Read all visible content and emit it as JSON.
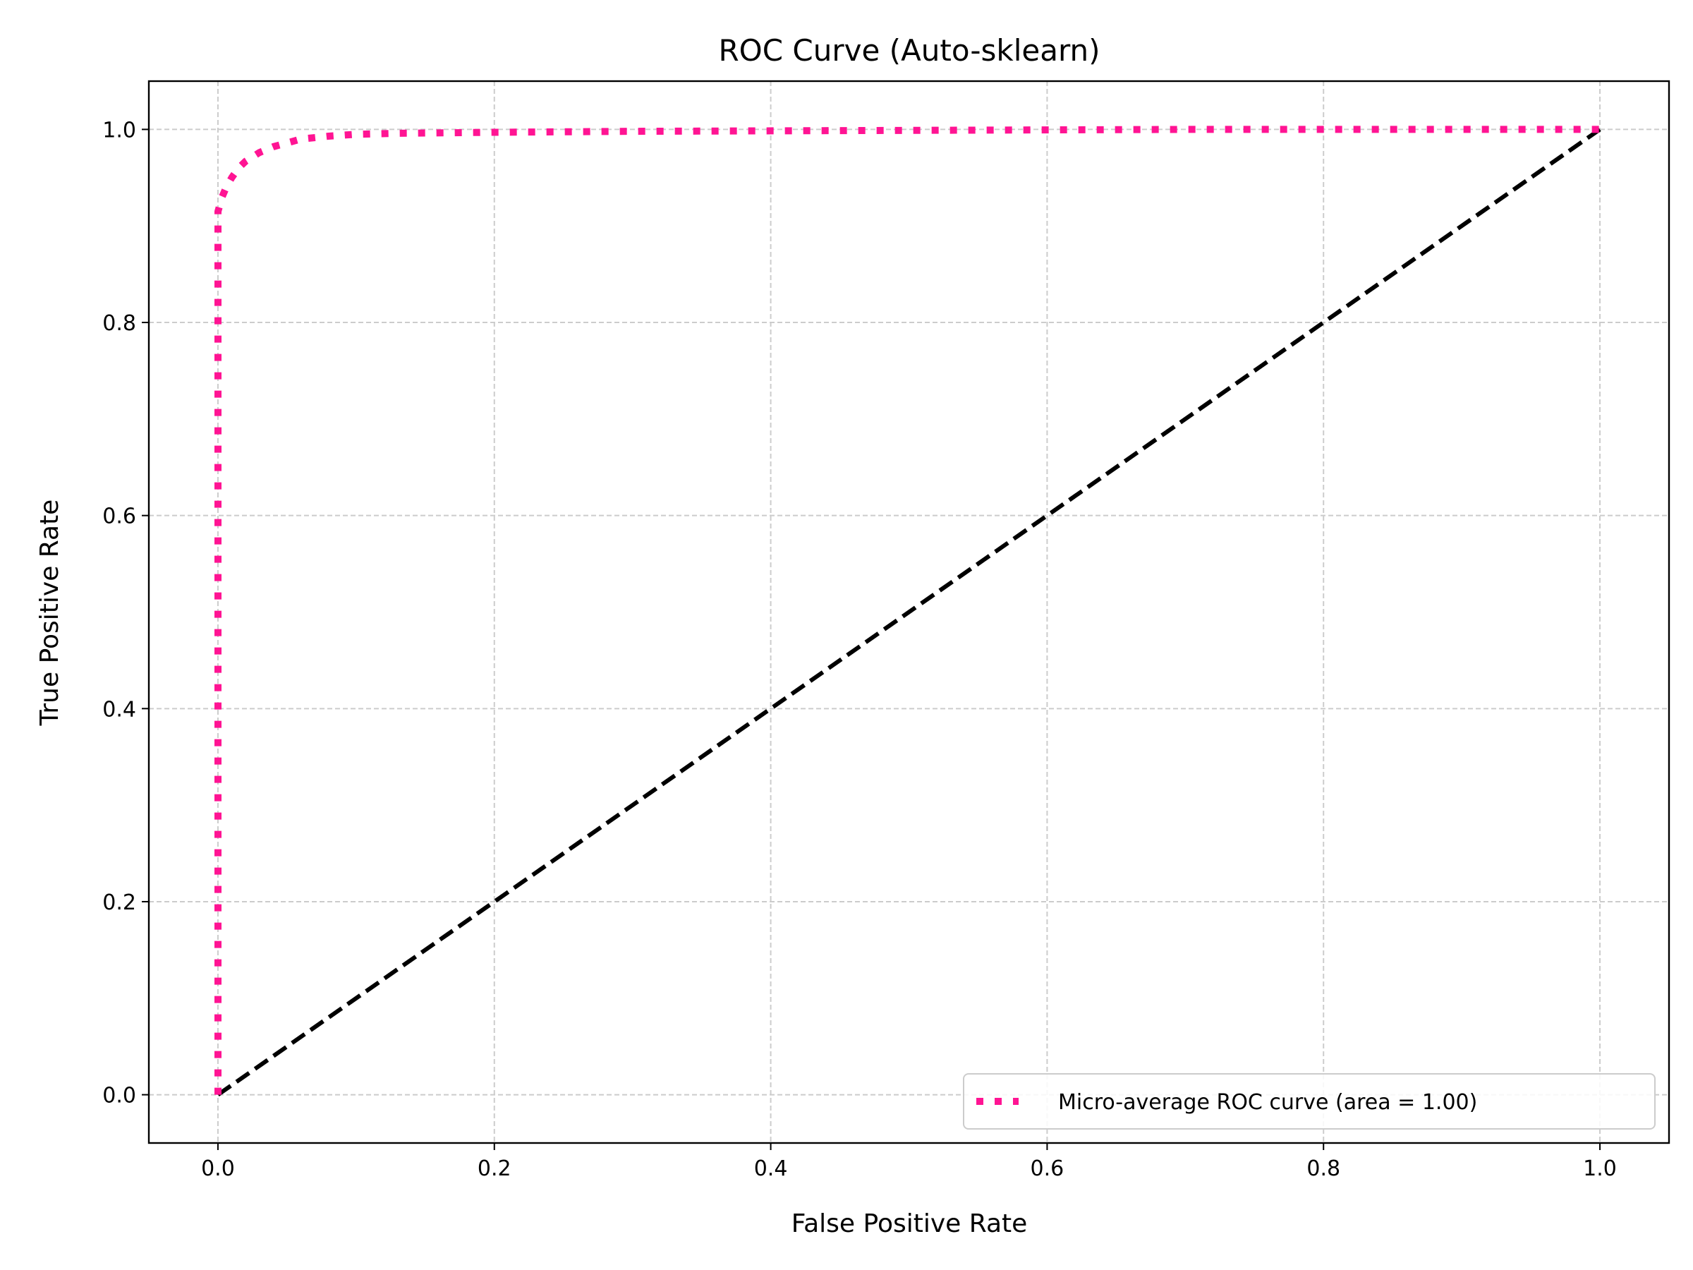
{
  "chart_data": {
    "type": "line",
    "title": "ROC Curve (Auto-sklearn)",
    "xlabel": "False Positive Rate",
    "ylabel": "True Positive Rate",
    "xlim": [
      -0.05,
      1.05
    ],
    "ylim": [
      -0.05,
      1.05
    ],
    "xticks": [
      0.0,
      0.2,
      0.4,
      0.6,
      0.8,
      1.0
    ],
    "yticks": [
      0.0,
      0.2,
      0.4,
      0.6,
      0.8,
      1.0
    ],
    "xtick_labels": [
      "0.0",
      "0.2",
      "0.4",
      "0.6",
      "0.8",
      "1.0"
    ],
    "ytick_labels": [
      "0.0",
      "0.2",
      "0.4",
      "0.6",
      "0.8",
      "1.0"
    ],
    "grid": true,
    "legend_position": "lower-right",
    "series": [
      {
        "name": "Micro-average ROC curve (area = 1.00)",
        "color": "#ff1493",
        "style": "dotted",
        "in_legend": true,
        "x": [
          0.0,
          0.0,
          0.0,
          0.0,
          0.003,
          0.006,
          0.01,
          0.015,
          0.02,
          0.03,
          0.04,
          0.05,
          0.06,
          0.08,
          0.1,
          0.13,
          0.2,
          0.3,
          0.5,
          0.7,
          0.9,
          1.0
        ],
        "y": [
          0.0,
          0.5,
          0.88,
          0.915,
          0.93,
          0.94,
          0.95,
          0.96,
          0.967,
          0.976,
          0.982,
          0.986,
          0.99,
          0.993,
          0.995,
          0.996,
          0.997,
          0.998,
          0.999,
          1.0,
          1.0,
          1.0
        ]
      },
      {
        "name": "",
        "color": "#000000",
        "style": "dashed",
        "in_legend": false,
        "x": [
          0.0,
          1.0
        ],
        "y": [
          0.0,
          1.0
        ]
      }
    ]
  }
}
